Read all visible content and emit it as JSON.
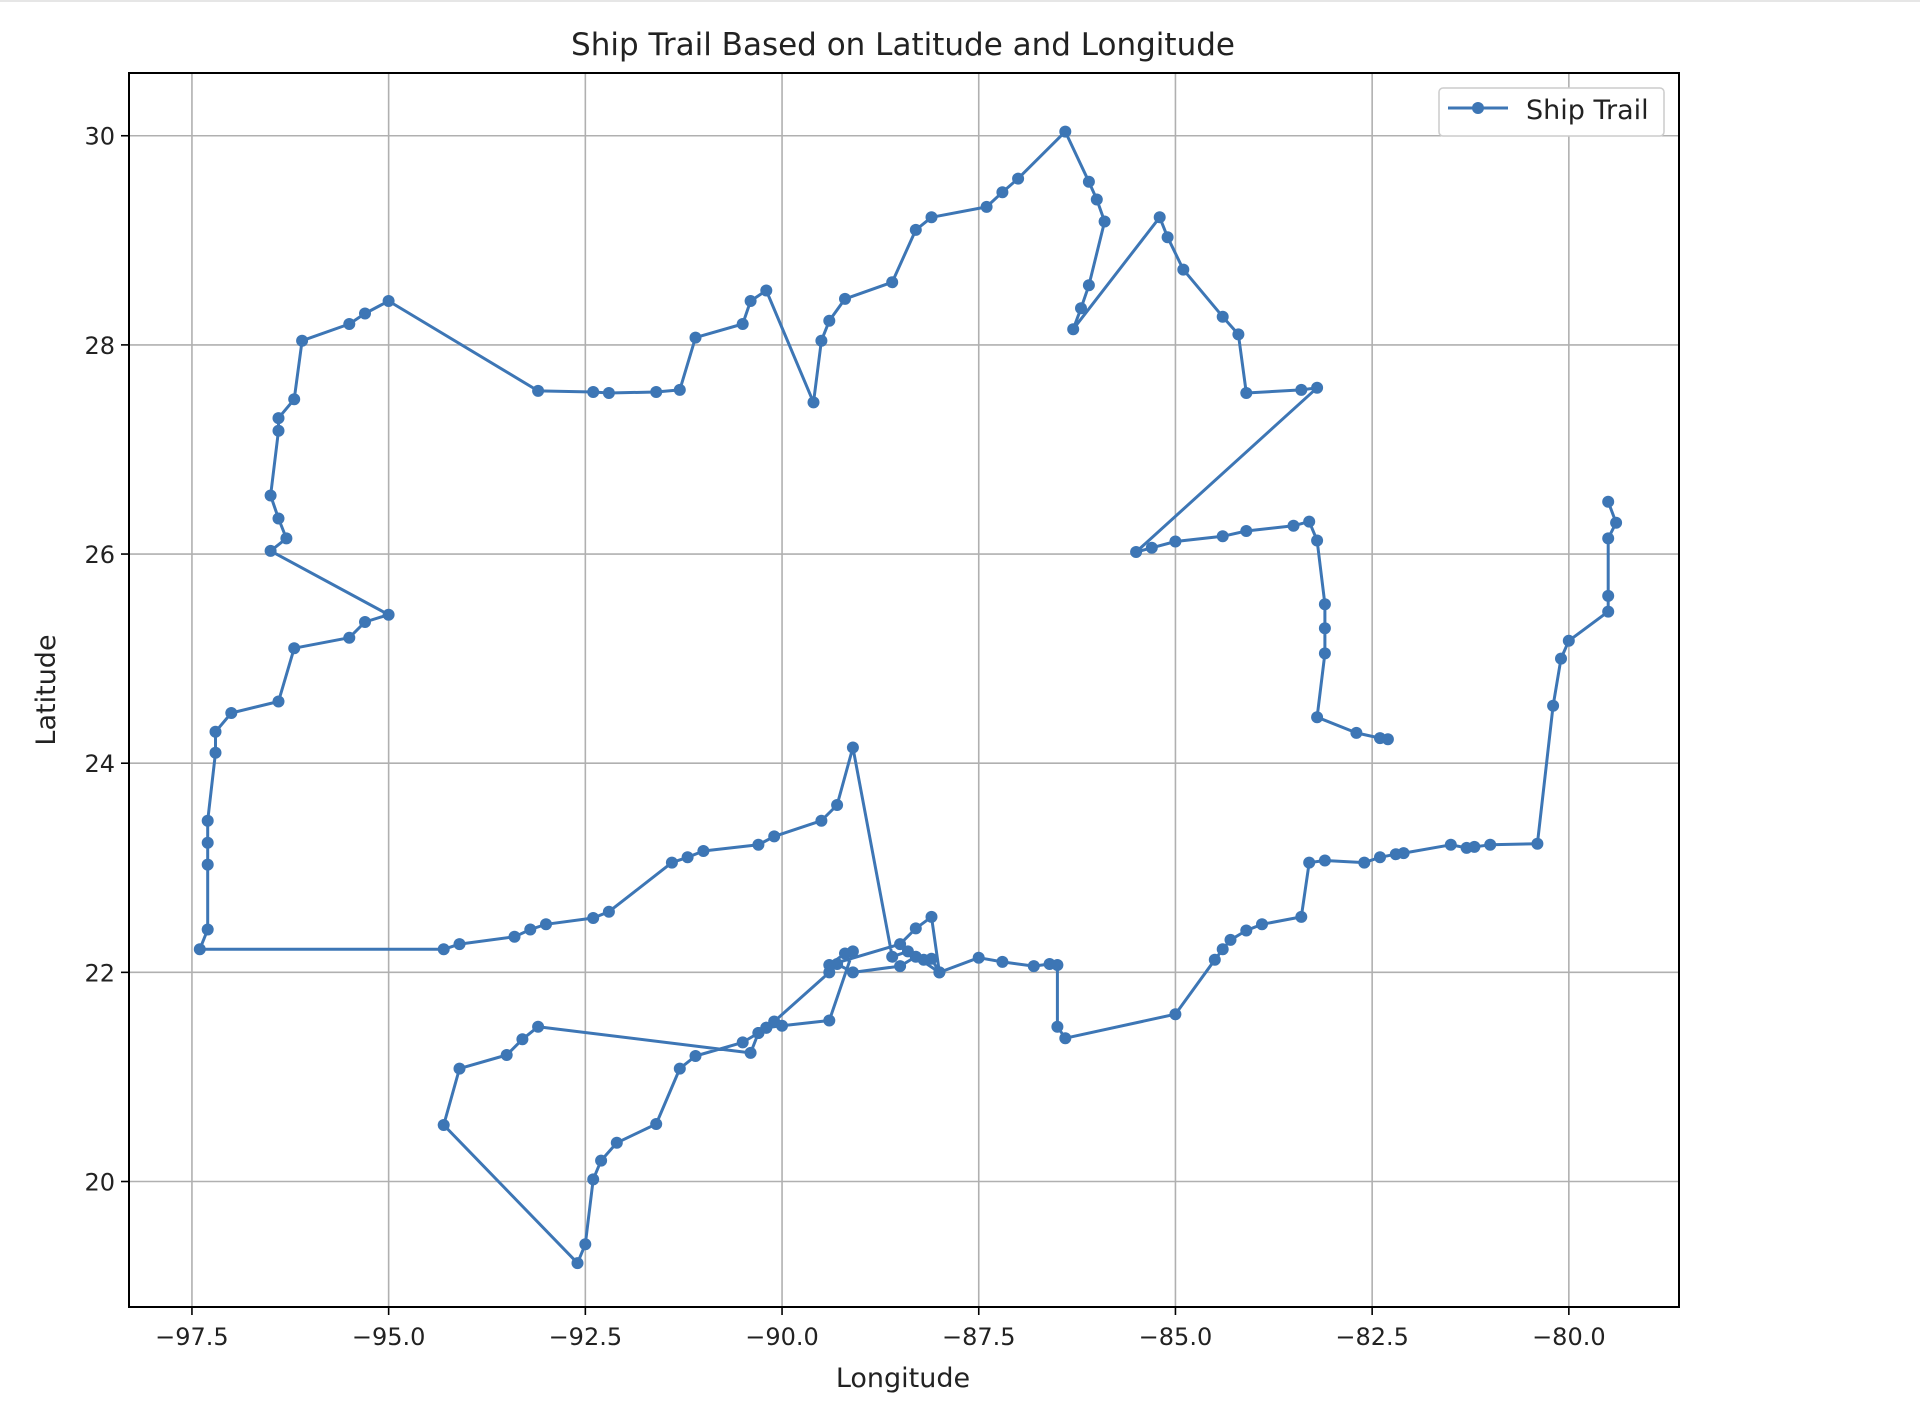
{
  "chart_data": {
    "type": "line",
    "title": "Ship Trail Based on Latitude and Longitude",
    "xlabel": "Longitude",
    "ylabel": "Latitude",
    "xlim": [
      -98.3,
      -78.6
    ],
    "ylim": [
      18.8,
      30.6
    ],
    "xticks": [
      -97.5,
      -95.0,
      -92.5,
      -90.0,
      -87.5,
      -85.0,
      -82.5,
      -80.0
    ],
    "yticks": [
      20,
      22,
      24,
      26,
      28,
      30
    ],
    "grid": true,
    "legend_position": "top-right",
    "color": "#3d76b5",
    "series": [
      {
        "name": "Ship Trail",
        "marker": "circle",
        "x": [
          -79.5,
          -79.4,
          -79.5,
          -79.5,
          -79.5,
          -80.0,
          -80.1,
          -80.2,
          -80.4,
          -81.0,
          -81.2,
          -81.3,
          -81.5,
          -82.1,
          -82.2,
          -82.4,
          -82.6,
          -83.1,
          -83.3,
          -83.4,
          -83.9,
          -84.1,
          -84.3,
          -84.4,
          -84.5,
          -85.0,
          -86.4,
          -86.5,
          -86.5,
          -86.6,
          -86.8,
          -87.2,
          -87.5,
          -88.0,
          -88.1,
          -88.2,
          -88.3,
          -88.5,
          -89.1,
          -89.3,
          -89.4,
          -90.1,
          -90.2,
          -90.3,
          -90.4,
          -93.1,
          -93.3,
          -93.5,
          -94.1,
          -94.3,
          -92.6,
          -92.5,
          -92.4,
          -92.3,
          -92.1,
          -91.6,
          -91.3,
          -91.1,
          -90.5,
          -90.3,
          -90.2,
          -90.0,
          -89.4,
          -89.1,
          -89.2,
          -89.4,
          -88.5,
          -88.3,
          -88.1,
          -88.0,
          -88.4,
          -88.6,
          -89.1,
          -89.3,
          -89.5,
          -90.1,
          -90.3,
          -91.0,
          -91.2,
          -91.4,
          -92.2,
          -92.4,
          -93.0,
          -93.2,
          -93.4,
          -94.1,
          -94.3,
          -97.4,
          -97.3,
          -97.3,
          -97.3,
          -97.3,
          -97.2,
          -97.2,
          -97.0,
          -96.4,
          -96.2,
          -95.5,
          -95.3,
          -95.0,
          -96.5,
          -96.3,
          -96.4,
          -96.5,
          -96.4,
          -96.4,
          -96.2,
          -96.1,
          -95.5,
          -95.3,
          -95.0,
          -93.1,
          -92.4,
          -92.2,
          -91.6,
          -91.3,
          -91.1,
          -90.5,
          -90.4,
          -90.2,
          -89.6,
          -89.5,
          -89.4,
          -89.2,
          -88.6,
          -88.3,
          -88.1,
          -87.4,
          -87.2,
          -87.0,
          -86.4,
          -86.1,
          -86.0,
          -85.9,
          -86.1,
          -86.2,
          -86.3,
          -85.2,
          -85.1,
          -84.9,
          -84.4,
          -84.2,
          -84.1,
          -83.4,
          -83.2,
          -85.5,
          -85.3,
          -85.0,
          -84.4,
          -84.1,
          -83.5,
          -83.3,
          -83.2,
          -83.1,
          -83.1,
          -83.1,
          -83.2,
          -82.7,
          -82.4,
          -82.3
        ],
        "y": [
          26.5,
          26.3,
          26.15,
          25.6,
          25.45,
          25.17,
          25.0,
          24.55,
          23.23,
          23.22,
          23.2,
          23.19,
          23.22,
          23.14,
          23.13,
          23.1,
          23.05,
          23.07,
          23.05,
          22.53,
          22.46,
          22.4,
          22.31,
          22.22,
          22.12,
          21.6,
          21.37,
          21.48,
          22.07,
          22.08,
          22.06,
          22.1,
          22.14,
          22.0,
          22.13,
          22.12,
          22.15,
          22.06,
          22.0,
          22.08,
          22.0,
          21.53,
          21.47,
          21.42,
          21.23,
          21.48,
          21.36,
          21.21,
          21.08,
          20.54,
          19.22,
          19.4,
          20.02,
          20.2,
          20.37,
          20.55,
          21.08,
          21.2,
          21.33,
          21.42,
          21.47,
          21.49,
          21.54,
          22.2,
          22.18,
          22.07,
          22.27,
          22.42,
          22.53,
          22.0,
          22.2,
          22.15,
          24.15,
          23.6,
          23.45,
          23.3,
          23.22,
          23.16,
          23.1,
          23.05,
          22.58,
          22.52,
          22.46,
          22.41,
          22.34,
          22.27,
          22.22,
          22.22,
          22.41,
          23.03,
          23.24,
          23.45,
          24.1,
          24.3,
          24.48,
          24.59,
          25.1,
          25.2,
          25.35,
          25.42,
          26.03,
          26.15,
          26.34,
          26.56,
          27.18,
          27.3,
          27.48,
          28.04,
          28.2,
          28.3,
          28.42,
          27.56,
          27.55,
          27.54,
          27.55,
          27.57,
          28.07,
          28.2,
          28.42,
          28.52,
          27.45,
          28.04,
          28.23,
          28.44,
          28.6,
          29.1,
          29.22,
          29.32,
          29.46,
          29.59,
          30.04,
          29.56,
          29.39,
          29.18,
          28.57,
          28.35,
          28.15,
          29.22,
          29.03,
          28.72,
          28.27,
          28.1,
          27.54,
          27.57,
          27.59,
          26.02,
          26.06,
          26.12,
          26.17,
          26.22,
          26.27,
          26.31,
          26.13,
          25.52,
          25.29,
          25.05,
          24.44,
          24.29,
          24.24,
          24.23
        ]
      }
    ]
  }
}
